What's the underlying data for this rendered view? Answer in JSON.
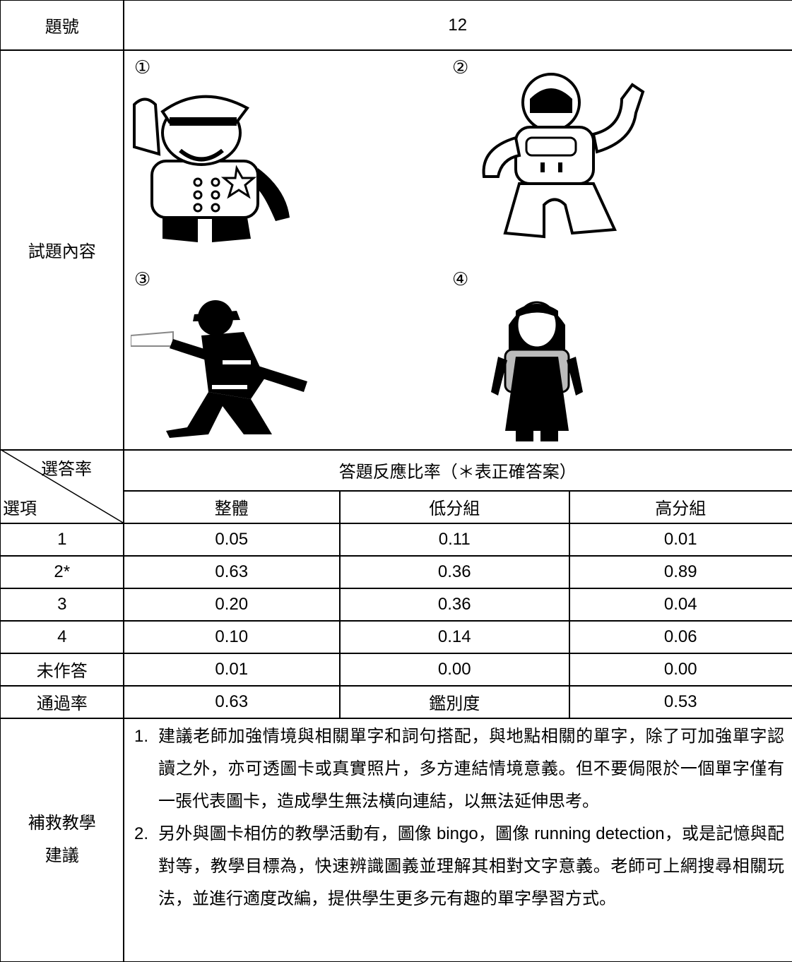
{
  "header": {
    "label": "題號",
    "value": "12"
  },
  "content": {
    "label": "試題內容",
    "options": [
      "①",
      "②",
      "③",
      "④"
    ]
  },
  "table": {
    "corner_top": "選答率",
    "corner_bottom": "選項",
    "group_header": "答題反應比率（＊表正確答案）",
    "columns": [
      "整體",
      "低分組",
      "高分組"
    ],
    "rows": [
      [
        "1",
        "0.05",
        "0.11",
        "0.01"
      ],
      [
        "2*",
        "0.63",
        "0.36",
        "0.89"
      ],
      [
        "3",
        "0.20",
        "0.36",
        "0.04"
      ],
      [
        "4",
        "0.10",
        "0.14",
        "0.06"
      ],
      [
        "未作答",
        "0.01",
        "0.00",
        "0.00"
      ],
      [
        "通過率",
        "0.63",
        "鑑別度",
        "0.53"
      ]
    ]
  },
  "remedial": {
    "label": [
      "補救教學",
      "建議"
    ],
    "items": [
      {
        "number": "1.",
        "text": "建議老師加強情境與相關單字和詞句搭配，與地點相關的單字，除了可加強單字認讀之外，亦可透圖卡或真實照片，多方連結情境意義。但不要侷限於一個單字僅有一張代表圖卡，造成學生無法橫向連結，以無法延伸思考。"
      },
      {
        "number": "2.",
        "text": "另外與圖卡相仿的教學活動有，圖像 bingo，圖像 running detection，或是記憶與配對等，教學目標為，快速辨識圖義並理解其相對文字意義。老師可上網搜尋相關玩法，並進行適度改編，提供學生更多元有趣的單字學習方式。"
      }
    ]
  }
}
